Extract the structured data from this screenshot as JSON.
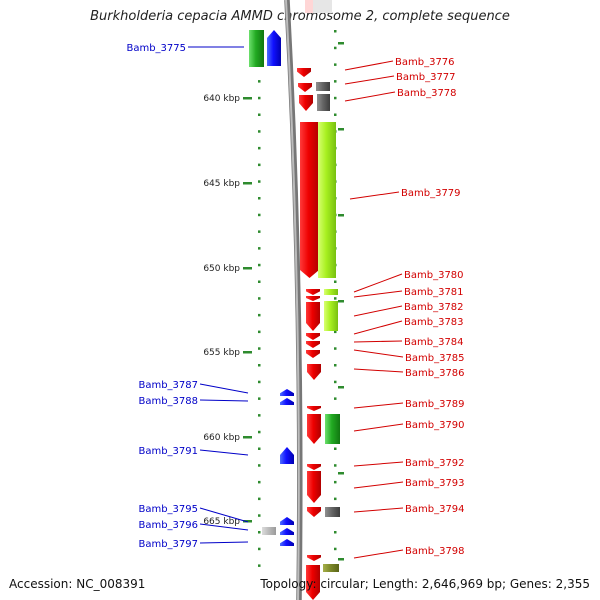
{
  "title": "Burkholderia cepacia AMMD chromosome 2, complete sequence",
  "footer": {
    "accession": "Accession: NC_008391",
    "summary": "Topology: circular; Length: 2,646,969 bp; Genes: 2,355"
  },
  "colors": {
    "forward_label": "#0000c8",
    "reverse_label": "#d20000",
    "tick": "#2e8b2e",
    "backbone": "#999999"
  },
  "scale": {
    "unit": "kbp",
    "ticks": [
      "640 kbp",
      "645 kbp",
      "650 kbp",
      "655 kbp",
      "660 kbp",
      "665 kbp"
    ]
  },
  "genes": [
    {
      "label": "Bamb_3775",
      "strand": "forward"
    },
    {
      "label": "Bamb_3776",
      "strand": "reverse"
    },
    {
      "label": "Bamb_3777",
      "strand": "reverse"
    },
    {
      "label": "Bamb_3778",
      "strand": "reverse"
    },
    {
      "label": "Bamb_3779",
      "strand": "reverse"
    },
    {
      "label": "Bamb_3780",
      "strand": "reverse"
    },
    {
      "label": "Bamb_3781",
      "strand": "reverse"
    },
    {
      "label": "Bamb_3782",
      "strand": "reverse"
    },
    {
      "label": "Bamb_3783",
      "strand": "reverse"
    },
    {
      "label": "Bamb_3784",
      "strand": "reverse"
    },
    {
      "label": "Bamb_3785",
      "strand": "reverse"
    },
    {
      "label": "Bamb_3786",
      "strand": "reverse"
    },
    {
      "label": "Bamb_3787",
      "strand": "forward"
    },
    {
      "label": "Bamb_3788",
      "strand": "forward"
    },
    {
      "label": "Bamb_3789",
      "strand": "reverse"
    },
    {
      "label": "Bamb_3790",
      "strand": "reverse"
    },
    {
      "label": "Bamb_3791",
      "strand": "forward"
    },
    {
      "label": "Bamb_3792",
      "strand": "reverse"
    },
    {
      "label": "Bamb_3793",
      "strand": "reverse"
    },
    {
      "label": "Bamb_3794",
      "strand": "reverse"
    },
    {
      "label": "Bamb_3795",
      "strand": "forward"
    },
    {
      "label": "Bamb_3796",
      "strand": "forward"
    },
    {
      "label": "Bamb_3797",
      "strand": "forward"
    },
    {
      "label": "Bamb_3798",
      "strand": "reverse"
    }
  ]
}
